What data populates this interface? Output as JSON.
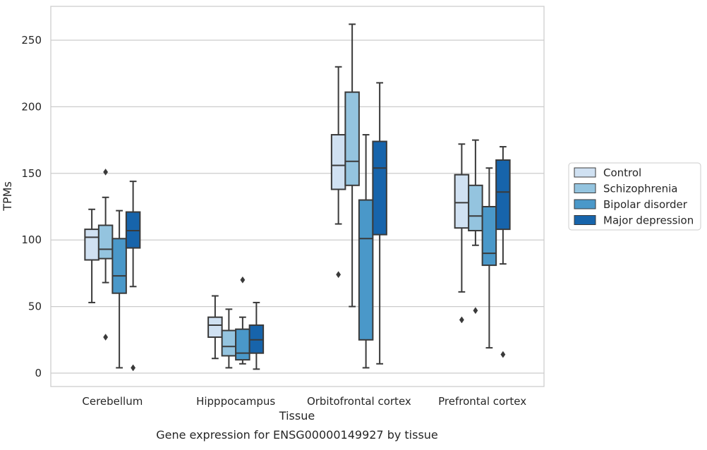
{
  "chart_data": {
    "type": "box",
    "xlabel": "Tissue",
    "ylabel": "TPMs",
    "caption": "Gene expression for ENSG00000149927 by tissue",
    "ylim": [
      -10,
      276
    ],
    "yticks": [
      0,
      50,
      100,
      150,
      200,
      250
    ],
    "grid": "horizontal",
    "legend_position": "right",
    "categories": [
      "Cerebellum",
      "Hipppocampus",
      "Orbitofrontal cortex",
      "Prefrontal cortex"
    ],
    "series": [
      {
        "name": "Control",
        "color": "#d0e1f2",
        "boxes": [
          {
            "whislo": 53,
            "q1": 85,
            "med": 102,
            "q3": 108,
            "whishi": 123,
            "fliers": []
          },
          {
            "whislo": 11,
            "q1": 27,
            "med": 36,
            "q3": 42,
            "whishi": 58,
            "fliers": []
          },
          {
            "whislo": 112,
            "q1": 138,
            "med": 156,
            "q3": 179,
            "whishi": 230,
            "fliers": [
              74
            ]
          },
          {
            "whislo": 61,
            "q1": 109,
            "med": 128,
            "q3": 149,
            "whishi": 172,
            "fliers": [
              40
            ]
          }
        ]
      },
      {
        "name": "Schizophrenia",
        "color": "#94c4df",
        "boxes": [
          {
            "whislo": 68,
            "q1": 86,
            "med": 93,
            "q3": 111,
            "whishi": 132,
            "fliers": [
              151,
              27
            ]
          },
          {
            "whislo": 4,
            "q1": 13,
            "med": 20,
            "q3": 32,
            "whishi": 48,
            "fliers": []
          },
          {
            "whislo": 50,
            "q1": 141,
            "med": 159,
            "q3": 211,
            "whishi": 262,
            "fliers": []
          },
          {
            "whislo": 96,
            "q1": 107,
            "med": 118,
            "q3": 141,
            "whishi": 175,
            "fliers": [
              47
            ]
          }
        ]
      },
      {
        "name": "Bipolar disorder",
        "color": "#4a98c9",
        "boxes": [
          {
            "whislo": 4,
            "q1": 60,
            "med": 73,
            "q3": 101,
            "whishi": 122,
            "fliers": []
          },
          {
            "whislo": 7,
            "q1": 10,
            "med": 15,
            "q3": 33,
            "whishi": 42,
            "fliers": [
              70
            ]
          },
          {
            "whislo": 4,
            "q1": 25,
            "med": 101,
            "q3": 130,
            "whishi": 179,
            "fliers": []
          },
          {
            "whislo": 19,
            "q1": 81,
            "med": 90,
            "q3": 125,
            "whishi": 154,
            "fliers": []
          }
        ]
      },
      {
        "name": "Major depression",
        "color": "#1764ab",
        "boxes": [
          {
            "whislo": 65,
            "q1": 94,
            "med": 107,
            "q3": 121,
            "whishi": 144,
            "fliers": [
              4
            ]
          },
          {
            "whislo": 3,
            "q1": 15,
            "med": 25,
            "q3": 36,
            "whishi": 53,
            "fliers": []
          },
          {
            "whislo": 7,
            "q1": 104,
            "med": 154,
            "q3": 174,
            "whishi": 218,
            "fliers": []
          },
          {
            "whislo": 82,
            "q1": 108,
            "med": 136,
            "q3": 160,
            "whishi": 170,
            "fliers": [
              14
            ]
          }
        ]
      }
    ]
  }
}
